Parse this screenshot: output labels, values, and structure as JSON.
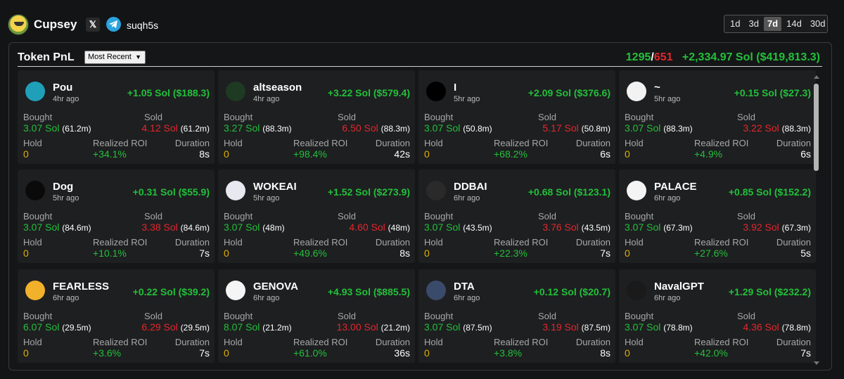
{
  "header": {
    "username": "Cupsey",
    "x_icon": "x-logo-icon",
    "telegram_icon": "telegram-icon",
    "handle": "suqh5s",
    "ranges": [
      {
        "label": "1d",
        "active": false
      },
      {
        "label": "3d",
        "active": false
      },
      {
        "label": "7d",
        "active": true
      },
      {
        "label": "14d",
        "active": false
      },
      {
        "label": "30d",
        "active": false
      }
    ]
  },
  "panel": {
    "title": "Token PnL",
    "sort_selected": "Most Recent",
    "wins": "1295",
    "separator": "/",
    "losses": "651",
    "total_pnl": "+2,334.97 Sol ($419,813.3)"
  },
  "labels": {
    "bought": "Bought",
    "sold": "Sold",
    "hold": "Hold",
    "roi": "Realized ROI",
    "duration": "Duration"
  },
  "colors": {
    "positive": "#22c03a",
    "negative": "#e5262b",
    "hold": "#e0b000",
    "background": "#131416",
    "card": "#1e1f21"
  },
  "tokens": [
    {
      "name": "Pou",
      "age": "4hr ago",
      "pnl": "+1.05 Sol ($188.3)",
      "bought": "3.07 Sol",
      "bought_amt": "(61.2m)",
      "sold": "4.12 Sol",
      "sold_amt": "(61.2m)",
      "hold": "0",
      "roi": "+34.1%",
      "duration": "8s",
      "icon": "pou-icon",
      "icon_bg": "#1fa0b8"
    },
    {
      "name": "altseason",
      "age": "4hr ago",
      "pnl": "+3.22 Sol ($579.4)",
      "bought": "3.27 Sol",
      "bought_amt": "(88.3m)",
      "sold": "6.50 Sol",
      "sold_amt": "(88.3m)",
      "hold": "0",
      "roi": "+98.4%",
      "duration": "42s",
      "icon": "altseason-icon",
      "icon_bg": "#1e3a22"
    },
    {
      "name": "I",
      "age": "5hr ago",
      "pnl": "+2.09 Sol ($376.6)",
      "bought": "3.07 Sol",
      "bought_amt": "(50.8m)",
      "sold": "5.17 Sol",
      "sold_amt": "(50.8m)",
      "hold": "0",
      "roi": "+68.2%",
      "duration": "6s",
      "icon": "black-circle-icon",
      "icon_bg": "#000000"
    },
    {
      "name": "~",
      "age": "5hr ago",
      "pnl": "+0.15 Sol ($27.3)",
      "bought": "3.07 Sol",
      "bought_amt": "(88.3m)",
      "sold": "3.22 Sol",
      "sold_amt": "(88.3m)",
      "hold": "0",
      "roi": "+4.9%",
      "duration": "6s",
      "icon": "house-icon",
      "icon_bg": "#f2f2f2"
    },
    {
      "name": "Dog",
      "age": "5hr ago",
      "pnl": "+0.31 Sol ($55.9)",
      "bought": "3.07 Sol",
      "bought_amt": "(84.6m)",
      "sold": "3.38 Sol",
      "sold_amt": "(84.6m)",
      "hold": "0",
      "roi": "+10.1%",
      "duration": "7s",
      "icon": "dog-icon",
      "icon_bg": "#0a0a0a"
    },
    {
      "name": "WOKEAI",
      "age": "5hr ago",
      "pnl": "+1.52 Sol ($273.9)",
      "bought": "3.07 Sol",
      "bought_amt": "(48m)",
      "sold": "4.60 Sol",
      "sold_amt": "(48m)",
      "hold": "0",
      "roi": "+49.6%",
      "duration": "8s",
      "icon": "elephant-icon",
      "icon_bg": "#e8e8f0"
    },
    {
      "name": "DDBAI",
      "age": "6hr ago",
      "pnl": "+0.68 Sol ($123.1)",
      "bought": "3.07 Sol",
      "bought_amt": "(43.5m)",
      "sold": "3.76 Sol",
      "sold_amt": "(43.5m)",
      "hold": "0",
      "roi": "+22.3%",
      "duration": "7s",
      "icon": "ddbai-icon",
      "icon_bg": "#2a2a2a"
    },
    {
      "name": "PALACE",
      "age": "6hr ago",
      "pnl": "+0.85 Sol ($152.2)",
      "bought": "3.07 Sol",
      "bought_amt": "(67.3m)",
      "sold": "3.92 Sol",
      "sold_amt": "(67.3m)",
      "hold": "0",
      "roi": "+27.6%",
      "duration": "5s",
      "icon": "palace-icon",
      "icon_bg": "#f4f4f4"
    },
    {
      "name": "FEARLESS",
      "age": "6hr ago",
      "pnl": "+0.22 Sol ($39.2)",
      "bought": "6.07 Sol",
      "bought_amt": "(29.5m)",
      "sold": "6.29 Sol",
      "sold_amt": "(29.5m)",
      "hold": "0",
      "roi": "+3.6%",
      "duration": "7s",
      "icon": "fearless-icon",
      "icon_bg": "#f2b12a"
    },
    {
      "name": "GENOVA",
      "age": "6hr ago",
      "pnl": "+4.93 Sol ($885.5)",
      "bought": "8.07 Sol",
      "bought_amt": "(21.2m)",
      "sold": "13.00 Sol",
      "sold_amt": "(21.2m)",
      "hold": "0",
      "roi": "+61.0%",
      "duration": "36s",
      "icon": "genova-icon",
      "icon_bg": "#f5f5f5"
    },
    {
      "name": "DTA",
      "age": "6hr ago",
      "pnl": "+0.12 Sol ($20.7)",
      "bought": "3.07 Sol",
      "bought_amt": "(87.5m)",
      "sold": "3.19 Sol",
      "sold_amt": "(87.5m)",
      "hold": "0",
      "roi": "+3.8%",
      "duration": "8s",
      "icon": "dta-icon",
      "icon_bg": "#3a4a6a"
    },
    {
      "name": "NavalGPT",
      "age": "6hr ago",
      "pnl": "+1.29 Sol ($232.2)",
      "bought": "3.07 Sol",
      "bought_amt": "(78.8m)",
      "sold": "4.36 Sol",
      "sold_amt": "(78.8m)",
      "hold": "0",
      "roi": "+42.0%",
      "duration": "7s",
      "icon": "navalgpt-icon",
      "icon_bg": "#1a1a1a"
    }
  ]
}
